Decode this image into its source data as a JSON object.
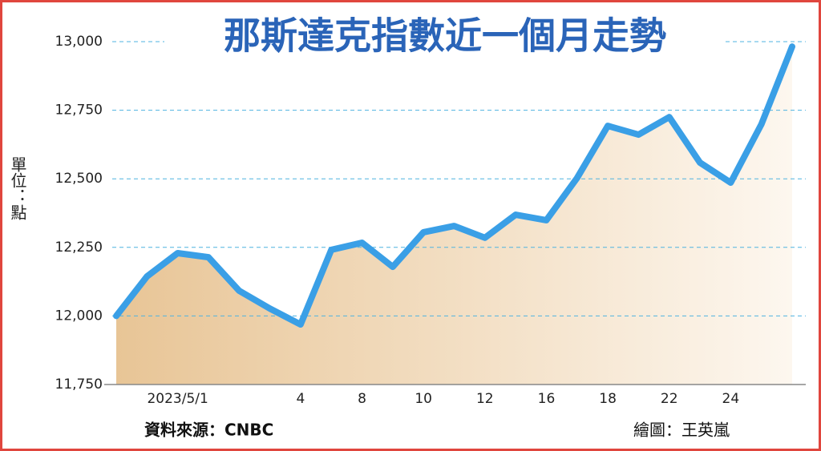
{
  "chart_data": {
    "type": "line",
    "title": "那斯達克指數近一個月走勢",
    "y_label": "單位：點",
    "source": "資料來源：CNBC",
    "credit": "繪圖：王英嵐",
    "categories": [
      null,
      null,
      "2023/5/1",
      null,
      null,
      null,
      "4",
      null,
      "8",
      null,
      "10",
      null,
      "12",
      null,
      "16",
      null,
      "18",
      null,
      "22",
      null,
      "24",
      null,
      null
    ],
    "series": [
      {
        "name": "Nasdaq",
        "color": "#3a9fe6",
        "values": [
          12000,
          12144,
          12229,
          12214,
          12092,
          12027,
          11969,
          12241,
          12267,
          12179,
          12305,
          12328,
          12285,
          12369,
          12349,
          12503,
          12693,
          12661,
          12725,
          12559,
          12486,
          12699,
          12982
        ]
      }
    ],
    "ylim": [
      11750,
      13000
    ],
    "yticks": [
      {
        "value": 11750,
        "label": "11,750"
      },
      {
        "value": 12000,
        "label": "12,000"
      },
      {
        "value": 12250,
        "label": "12,250"
      },
      {
        "value": 12500,
        "label": "12,500"
      },
      {
        "value": 12750,
        "label": "12,750"
      },
      {
        "value": 13000,
        "label": "13,000"
      }
    ],
    "grid": true
  }
}
